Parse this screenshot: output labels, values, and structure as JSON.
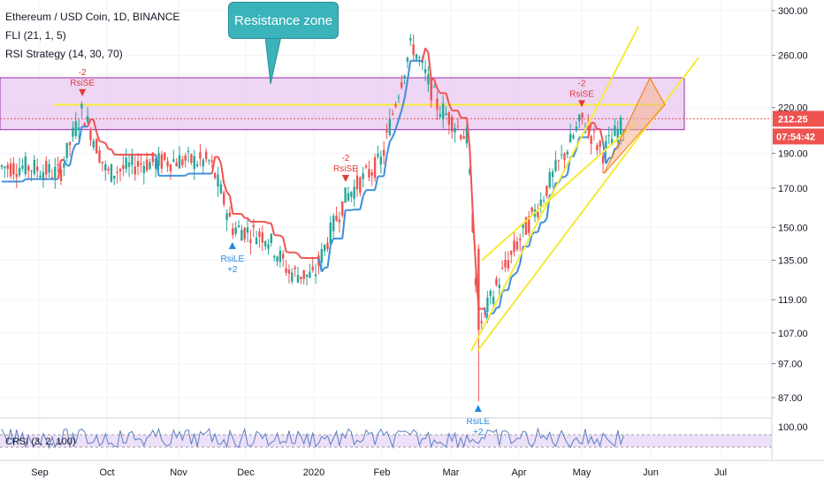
{
  "header": {
    "title": "Ethereum / USD Coin, 1D, BINANCE",
    "indicator_fli": "FLI (21, 1, 5)",
    "indicator_rsi_strategy": "RSI Strategy (14, 30, 70)"
  },
  "callout": {
    "text": "Resistance zone"
  },
  "price_tag": {
    "value": "212.25",
    "color": "#ef5350"
  },
  "countdown_tag": {
    "value": "07:54:42",
    "color": "#ef5350"
  },
  "rsi_panel": {
    "label": "CRSI (3, 2, 100)",
    "scale_label": "100.00",
    "line_color": "#5b7fc0",
    "band_color": "#e9d8f7"
  },
  "colors": {
    "up_candle": "#26a69a",
    "down_candle": "#ef5350",
    "fli_up": "#3d8fd9",
    "fli_down": "#ef5350",
    "resistance_zone": "#e8c8f0",
    "trendline": "#f6ea3a",
    "triangle": "#f5b38c"
  },
  "chart_data": {
    "type": "candlestick",
    "title": "Ethereum / USD Coin, 1D, BINANCE",
    "y_axis": {
      "scale": "log",
      "range": [
        80,
        305
      ],
      "tick_labels": [
        "300.00",
        "260.00",
        "220.00",
        "190.00",
        "170.00",
        "150.00",
        "135.00",
        "119.00",
        "107.00",
        "97.00",
        "87.00"
      ]
    },
    "x_axis": {
      "tick_labels": [
        "Sep",
        "Oct",
        "Nov",
        "Dec",
        "2020",
        "Feb",
        "Mar",
        "Apr",
        "May",
        "Jun",
        "Jul"
      ]
    },
    "approx_close_path": [
      {
        "x": "Aug 25",
        "close": 182
      },
      {
        "x": "Sep 10",
        "close": 178
      },
      {
        "x": "Sep 20",
        "close": 218
      },
      {
        "x": "Oct 1",
        "close": 178
      },
      {
        "x": "Oct 15",
        "close": 184
      },
      {
        "x": "Nov 1",
        "close": 186
      },
      {
        "x": "Nov 15",
        "close": 185
      },
      {
        "x": "Nov 25",
        "close": 150
      },
      {
        "x": "Dec 10",
        "close": 146
      },
      {
        "x": "Dec 20",
        "close": 130
      },
      {
        "x": "Jan 1",
        "close": 128
      },
      {
        "x": "Jan 15",
        "close": 165
      },
      {
        "x": "Feb 1",
        "close": 186
      },
      {
        "x": "Feb 14",
        "close": 270
      },
      {
        "x": "Feb 25",
        "close": 222
      },
      {
        "x": "Mar 8",
        "close": 200
      },
      {
        "x": "Mar 13",
        "close": 108
      },
      {
        "x": "Mar 25",
        "close": 132
      },
      {
        "x": "Apr 10",
        "close": 160
      },
      {
        "x": "Apr 25",
        "close": 195
      },
      {
        "x": "May 1",
        "close": 212
      },
      {
        "x": "May 10",
        "close": 190
      },
      {
        "x": "May 17",
        "close": 205
      },
      {
        "x": "May 22",
        "close": 212.25
      }
    ],
    "annotations": [
      {
        "text": "-2",
        "label": "RsiSE",
        "type": "short",
        "x": "Sep 20"
      },
      {
        "text": "-2",
        "label": "RsiSE",
        "type": "short",
        "x": "Jan 15"
      },
      {
        "text": "-2",
        "label": "RsiSE",
        "type": "short",
        "x": "May 1"
      },
      {
        "text": "RsiLE",
        "value": "+2",
        "type": "long",
        "x": "Nov 25"
      },
      {
        "text": "RsiLE",
        "value": "+2",
        "type": "long",
        "x": "Mar 13"
      }
    ],
    "resistance_zone": [
      205,
      242
    ],
    "horizontal_level": 222,
    "current_price": 212.25,
    "countdown": "07:54:42",
    "rsi_indicator": {
      "name": "CRSI",
      "params": "3, 2, 100",
      "scale_top": "100.00"
    }
  }
}
